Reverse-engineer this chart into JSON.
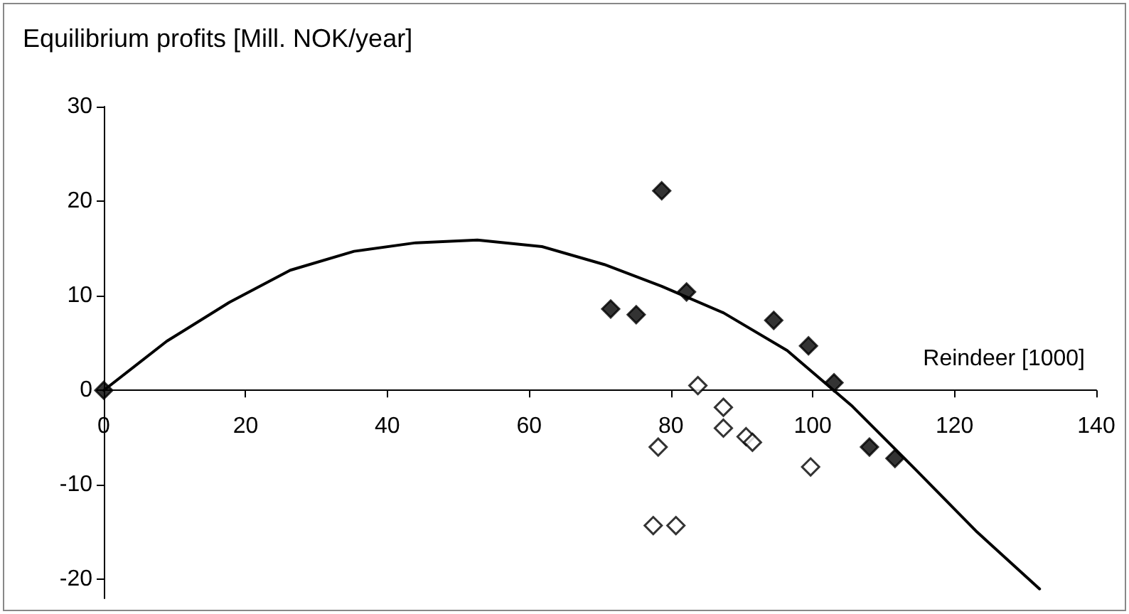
{
  "chart_data": {
    "type": "scatter",
    "xlabel": "Reindeer [1000]",
    "ylabel": "Equilibrium profits [Mill. NOK/year]",
    "xlim": [
      0,
      140
    ],
    "xticks": [
      0,
      20,
      40,
      60,
      80,
      100,
      120,
      140
    ],
    "ylim": [
      -22,
      30
    ],
    "yticks": [
      -20,
      -10,
      0,
      10,
      20,
      30
    ],
    "marker": "diamond",
    "series": [
      {
        "type": "line",
        "color": "#000000",
        "marker": "none",
        "line_style": "solid",
        "x": [
          0,
          8.9,
          17.7,
          26.3,
          35.3,
          44,
          52.7,
          61.8,
          70.6,
          78.7,
          87.4,
          96.4,
          105.6,
          114.4,
          123.2,
          132
        ],
        "values": [
          0,
          5.2,
          9.3,
          12.7,
          14.7,
          15.6,
          15.9,
          15.2,
          13.3,
          11,
          8.2,
          4.2,
          -1.7,
          -8.3,
          -15,
          -21
        ]
      },
      {
        "color": "#000000",
        "x": [
          0,
          78.7,
          71.5,
          75.1,
          82.2,
          94.5,
          99.4,
          103,
          108,
          111.6
        ],
        "values": [
          0,
          21.1,
          8.6,
          8,
          10.4,
          7.4,
          4.7,
          0.8,
          -6,
          -7.2
        ]
      },
      {
        "color": "#ffffff",
        "x": [
          83.8,
          87.4,
          87.4,
          90.6,
          91.5,
          78.2,
          99.7,
          77.5,
          80.7
        ],
        "values": [
          0.5,
          -1.8,
          -4,
          -4.9,
          -5.5,
          -6,
          -8.1,
          -14.3,
          -14.3
        ]
      }
    ]
  }
}
